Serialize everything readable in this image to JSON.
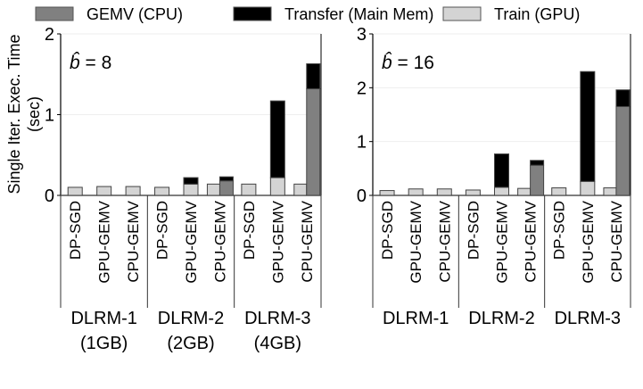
{
  "legend": [
    {
      "name": "GEMV (CPU)",
      "color": "#808080"
    },
    {
      "name": "Transfer (Main Mem)",
      "color": "#000000"
    },
    {
      "name": "Train (GPU)",
      "color": "#d4d4d4"
    }
  ],
  "ylabel_line1": "Single Iter. Exec. Time",
  "ylabel_line2": "(sec)",
  "chart_data": [
    {
      "type": "bar",
      "stacked": true,
      "annotation": "= 8",
      "annotation_symbol": "b̂",
      "ylim": [
        0,
        2
      ],
      "yticks": [
        "0",
        "1",
        "2"
      ],
      "grid": true,
      "groups": [
        {
          "label": "DLRM-1",
          "sublabel": "(1GB)"
        },
        {
          "label": "DLRM-2",
          "sublabel": "(2GB)"
        },
        {
          "label": "DLRM-3",
          "sublabel": "(4GB)"
        }
      ],
      "methods": [
        "DP-SGD",
        "GPU-GEMV",
        "CPU-GEMV"
      ],
      "values": [
        [
          {
            "train": 0.1
          },
          {
            "train": 0.11
          },
          {
            "train": 0.11
          }
        ],
        [
          {
            "train": 0.1
          },
          {
            "train": 0.14,
            "transfer": 0.08
          },
          {
            "train": 0.14,
            "gemv": 0.18,
            "transfer": 0.05
          }
        ],
        [
          {
            "train": 0.14
          },
          {
            "train": 0.22,
            "transfer": 0.95
          },
          {
            "train": 0.14,
            "gemv": 1.32,
            "transfer": 0.31
          }
        ]
      ]
    },
    {
      "type": "bar",
      "stacked": true,
      "annotation": "= 16",
      "annotation_symbol": "b̂",
      "ylim": [
        0,
        3
      ],
      "yticks": [
        "0",
        "1",
        "2",
        "3"
      ],
      "grid": true,
      "groups": [
        {
          "label": "DLRM-1"
        },
        {
          "label": "DLRM-2"
        },
        {
          "label": "DLRM-3"
        }
      ],
      "methods": [
        "DP-SGD",
        "GPU-GEMV",
        "CPU-GEMV"
      ],
      "values": [
        [
          {
            "train": 0.09
          },
          {
            "train": 0.12
          },
          {
            "train": 0.12
          }
        ],
        [
          {
            "train": 0.1
          },
          {
            "train": 0.15,
            "transfer": 0.62
          },
          {
            "train": 0.13,
            "gemv": 0.56,
            "transfer": 0.09
          }
        ],
        [
          {
            "train": 0.14
          },
          {
            "train": 0.26,
            "transfer": 2.04
          },
          {
            "train": 0.14,
            "gemv": 1.65,
            "transfer": 0.31
          }
        ]
      ]
    }
  ]
}
